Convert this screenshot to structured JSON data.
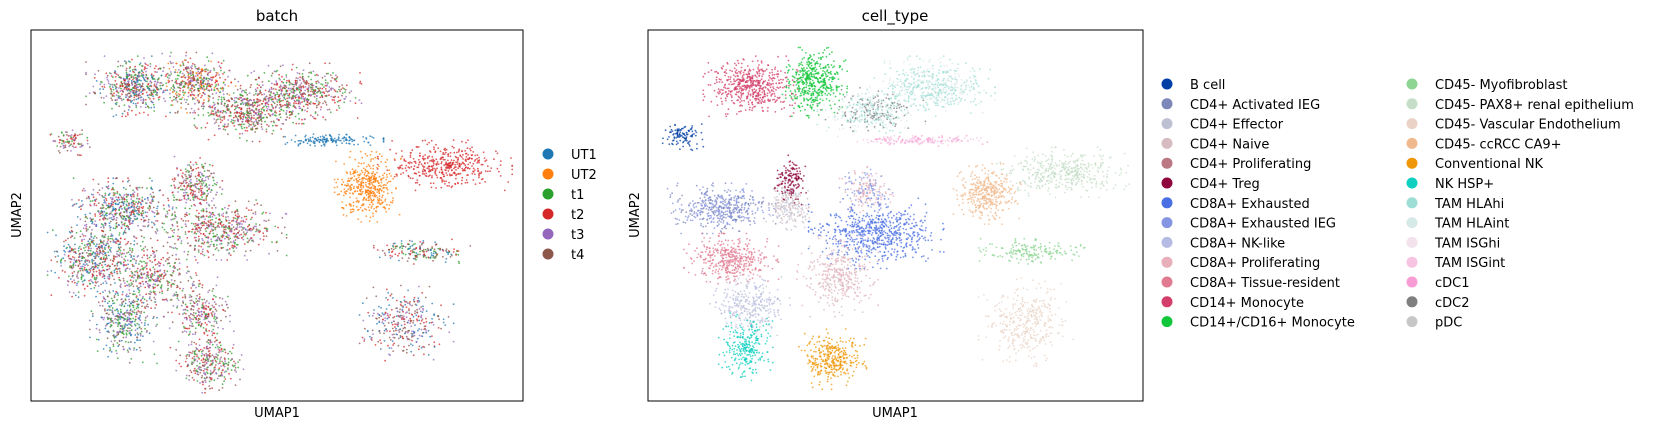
{
  "chart_data": [
    {
      "type": "scatter",
      "title": "batch",
      "xlabel": "UMAP1",
      "ylabel": "UMAP2",
      "grid": false,
      "ticks": false,
      "legend": "right",
      "legend_entries": [
        {
          "label": "UT1",
          "color": "#1f77b4"
        },
        {
          "label": "UT2",
          "color": "#ff7f0e"
        },
        {
          "label": "t1",
          "color": "#2ca02c"
        },
        {
          "label": "t2",
          "color": "#d62728"
        },
        {
          "label": "t3",
          "color": "#9467bd"
        },
        {
          "label": "t4",
          "color": "#8c564b"
        }
      ],
      "clusters": [
        {
          "cx": 0.2,
          "cy": 0.86,
          "rx": 0.07,
          "ry": 0.06,
          "n": 520,
          "mix": [
            "t4",
            "t2",
            "t3",
            "t1",
            "UT1"
          ]
        },
        {
          "cx": 0.33,
          "cy": 0.87,
          "rx": 0.06,
          "ry": 0.06,
          "n": 420,
          "mix": [
            "t3",
            "t1",
            "t4",
            "UT2",
            "t2"
          ]
        },
        {
          "cx": 0.44,
          "cy": 0.79,
          "rx": 0.08,
          "ry": 0.06,
          "n": 520,
          "mix": [
            "t2",
            "t4",
            "t3",
            "t1"
          ]
        },
        {
          "cx": 0.55,
          "cy": 0.84,
          "rx": 0.09,
          "ry": 0.06,
          "n": 520,
          "mix": [
            "t2",
            "t3",
            "t4",
            "t1"
          ]
        },
        {
          "cx": 0.07,
          "cy": 0.71,
          "rx": 0.03,
          "ry": 0.03,
          "n": 90,
          "mix": [
            "t4",
            "t1",
            "t2",
            "t3"
          ]
        },
        {
          "cx": 0.18,
          "cy": 0.52,
          "rx": 0.08,
          "ry": 0.06,
          "n": 520,
          "mix": [
            "t4",
            "t1",
            "t3",
            "UT1",
            "t2"
          ]
        },
        {
          "cx": 0.12,
          "cy": 0.38,
          "rx": 0.07,
          "ry": 0.09,
          "n": 560,
          "mix": [
            "t4",
            "t2",
            "UT1",
            "t1",
            "t3"
          ]
        },
        {
          "cx": 0.38,
          "cy": 0.46,
          "rx": 0.1,
          "ry": 0.06,
          "n": 520,
          "mix": [
            "t3",
            "t4",
            "t2",
            "t1"
          ]
        },
        {
          "cx": 0.33,
          "cy": 0.58,
          "rx": 0.04,
          "ry": 0.06,
          "n": 260,
          "mix": [
            "t1",
            "t3",
            "t4",
            "t2"
          ]
        },
        {
          "cx": 0.24,
          "cy": 0.33,
          "rx": 0.07,
          "ry": 0.08,
          "n": 380,
          "mix": [
            "t4",
            "t3",
            "t1",
            "t2"
          ]
        },
        {
          "cx": 0.34,
          "cy": 0.23,
          "rx": 0.05,
          "ry": 0.07,
          "n": 260,
          "mix": [
            "t3",
            "t4",
            "t2",
            "t1"
          ]
        },
        {
          "cx": 0.18,
          "cy": 0.2,
          "rx": 0.05,
          "ry": 0.08,
          "n": 360,
          "mix": [
            "t1",
            "UT1",
            "t4",
            "t3"
          ]
        },
        {
          "cx": 0.36,
          "cy": 0.09,
          "rx": 0.05,
          "ry": 0.06,
          "n": 300,
          "mix": [
            "t1",
            "t4",
            "t3",
            "t2"
          ]
        },
        {
          "cx": 0.69,
          "cy": 0.58,
          "rx": 0.05,
          "ry": 0.07,
          "n": 420,
          "mix": [
            "UT2"
          ]
        },
        {
          "cx": 0.85,
          "cy": 0.64,
          "rx": 0.1,
          "ry": 0.05,
          "n": 420,
          "mix": [
            "t2"
          ]
        },
        {
          "cx": 0.8,
          "cy": 0.4,
          "rx": 0.08,
          "ry": 0.025,
          "n": 180,
          "mix": [
            "t4",
            "t2",
            "t1",
            "UT1"
          ]
        },
        {
          "cx": 0.77,
          "cy": 0.2,
          "rx": 0.07,
          "ry": 0.08,
          "n": 330,
          "mix": [
            "t4",
            "t2",
            "UT1",
            "t3"
          ]
        },
        {
          "cx": 0.61,
          "cy": 0.71,
          "rx": 0.08,
          "ry": 0.012,
          "n": 150,
          "mix": [
            "UT1"
          ]
        }
      ]
    },
    {
      "type": "scatter",
      "title": "cell_type",
      "xlabel": "UMAP1",
      "ylabel": "UMAP2",
      "grid": false,
      "ticks": false,
      "legend": "right",
      "legend_entries": [
        {
          "label": "B cell",
          "color": "#023fa5"
        },
        {
          "label": "CD4+ Activated IEG",
          "color": "#7d87b9"
        },
        {
          "label": "CD4+ Effector",
          "color": "#bec1d4"
        },
        {
          "label": "CD4+ Naive",
          "color": "#d6bcc0"
        },
        {
          "label": "CD4+ Proliferating",
          "color": "#bb7784"
        },
        {
          "label": "CD4+ Treg",
          "color": "#8e063b"
        },
        {
          "label": "CD8A+ Exhausted",
          "color": "#4a6fe3"
        },
        {
          "label": "CD8A+ Exhausted IEG",
          "color": "#8595e1"
        },
        {
          "label": "CD8A+ NK-like",
          "color": "#b5bbe3"
        },
        {
          "label": "CD8A+ Proliferating",
          "color": "#e6afb9"
        },
        {
          "label": "CD8A+ Tissue-resident",
          "color": "#e07b91"
        },
        {
          "label": "CD14+ Monocyte",
          "color": "#d33f6a"
        },
        {
          "label": "CD14+/CD16+ Monocyte",
          "color": "#11c638"
        },
        {
          "label": "CD45- Myofibroblast",
          "color": "#8dd593"
        },
        {
          "label": "CD45- PAX8+ renal epithelium",
          "color": "#c6dec7"
        },
        {
          "label": "CD45- Vascular Endothelium",
          "color": "#ead3c6"
        },
        {
          "label": "CD45- ccRCC CA9+",
          "color": "#f0b98d"
        },
        {
          "label": "Conventional NK",
          "color": "#ef9708"
        },
        {
          "label": "NK HSP+",
          "color": "#0fcfc0"
        },
        {
          "label": "TAM HLAhi",
          "color": "#9cded6"
        },
        {
          "label": "TAM HLAint",
          "color": "#d5eae7"
        },
        {
          "label": "TAM ISGhi",
          "color": "#f3e1eb"
        },
        {
          "label": "TAM ISGint",
          "color": "#f6c4e1"
        },
        {
          "label": "cDC1",
          "color": "#f79cd4"
        },
        {
          "label": "cDC2",
          "color": "#7f7f7f"
        },
        {
          "label": "pDC",
          "color": "#c7c7c7"
        }
      ],
      "clusters": [
        {
          "cx": 0.2,
          "cy": 0.86,
          "rx": 0.07,
          "ry": 0.06,
          "n": 520,
          "mix": [
            "CD14+ Monocyte"
          ]
        },
        {
          "cx": 0.33,
          "cy": 0.87,
          "rx": 0.05,
          "ry": 0.07,
          "n": 460,
          "mix": [
            "CD14+/CD16+ Monocyte"
          ]
        },
        {
          "cx": 0.45,
          "cy": 0.79,
          "rx": 0.08,
          "ry": 0.05,
          "n": 420,
          "mix": [
            "TAM HLAint",
            "cDC2",
            "TAM HLAhi"
          ]
        },
        {
          "cx": 0.58,
          "cy": 0.86,
          "rx": 0.09,
          "ry": 0.06,
          "n": 520,
          "mix": [
            "TAM HLAhi",
            "TAM HLAint"
          ]
        },
        {
          "cx": 0.06,
          "cy": 0.72,
          "rx": 0.03,
          "ry": 0.03,
          "n": 110,
          "mix": [
            "B cell"
          ]
        },
        {
          "cx": 0.14,
          "cy": 0.52,
          "rx": 0.08,
          "ry": 0.05,
          "n": 460,
          "mix": [
            "CD4+ Activated IEG",
            "CD8A+ Exhausted IEG"
          ]
        },
        {
          "cx": 0.28,
          "cy": 0.53,
          "rx": 0.04,
          "ry": 0.05,
          "n": 230,
          "mix": [
            "CD4+ Naive",
            "CD4+ Effector"
          ]
        },
        {
          "cx": 0.28,
          "cy": 0.6,
          "rx": 0.025,
          "ry": 0.05,
          "n": 140,
          "mix": [
            "CD4+ Treg"
          ]
        },
        {
          "cx": 0.46,
          "cy": 0.45,
          "rx": 0.1,
          "ry": 0.07,
          "n": 640,
          "mix": [
            "CD8A+ Exhausted"
          ]
        },
        {
          "cx": 0.44,
          "cy": 0.57,
          "rx": 0.04,
          "ry": 0.05,
          "n": 200,
          "mix": [
            "CD8A+ Proliferating",
            "CD8A+ Exhausted IEG"
          ]
        },
        {
          "cx": 0.16,
          "cy": 0.38,
          "rx": 0.07,
          "ry": 0.05,
          "n": 400,
          "mix": [
            "CD8A+ Tissue-resident"
          ]
        },
        {
          "cx": 0.38,
          "cy": 0.33,
          "rx": 0.06,
          "ry": 0.08,
          "n": 360,
          "mix": [
            "CD4+ Naive",
            "CD8A+ Proliferating"
          ]
        },
        {
          "cx": 0.2,
          "cy": 0.25,
          "rx": 0.06,
          "ry": 0.06,
          "n": 300,
          "mix": [
            "CD8A+ NK-like",
            "CD4+ Effector"
          ]
        },
        {
          "cx": 0.19,
          "cy": 0.13,
          "rx": 0.04,
          "ry": 0.07,
          "n": 260,
          "mix": [
            "NK HSP+"
          ]
        },
        {
          "cx": 0.37,
          "cy": 0.1,
          "rx": 0.05,
          "ry": 0.06,
          "n": 340,
          "mix": [
            "Conventional NK"
          ]
        },
        {
          "cx": 0.69,
          "cy": 0.56,
          "rx": 0.05,
          "ry": 0.06,
          "n": 380,
          "mix": [
            "CD45- ccRCC CA9+"
          ]
        },
        {
          "cx": 0.85,
          "cy": 0.62,
          "rx": 0.1,
          "ry": 0.05,
          "n": 420,
          "mix": [
            "CD45- PAX8+ renal epithelium"
          ]
        },
        {
          "cx": 0.78,
          "cy": 0.4,
          "rx": 0.08,
          "ry": 0.025,
          "n": 180,
          "mix": [
            "CD45- Myofibroblast"
          ]
        },
        {
          "cx": 0.77,
          "cy": 0.2,
          "rx": 0.07,
          "ry": 0.09,
          "n": 360,
          "mix": [
            "CD45- Vascular Endothelium"
          ]
        },
        {
          "cx": 0.55,
          "cy": 0.71,
          "rx": 0.1,
          "ry": 0.012,
          "n": 160,
          "mix": [
            "TAM ISGint",
            "cDC1"
          ]
        }
      ]
    }
  ]
}
